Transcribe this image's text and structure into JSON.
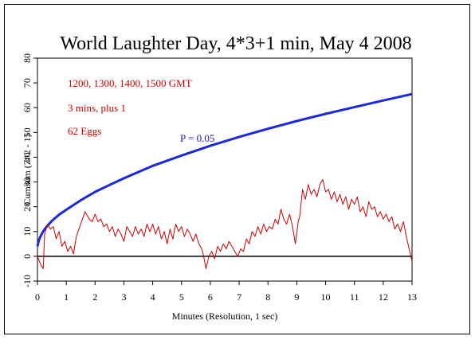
{
  "chart_data": {
    "type": "line",
    "title": "World Laughter Day, 4*3+1 min, May 4 2008",
    "xlabel": "Minutes (Resolution, 1 sec)",
    "ylabel": "Cumsum (Z^2 - 1)",
    "xlim": [
      0,
      13
    ],
    "ylim": [
      -10,
      80
    ],
    "xticks": [
      "0",
      "1",
      "2",
      "3",
      "4",
      "5",
      "6",
      "7",
      "8",
      "9",
      "10",
      "11",
      "12",
      "13"
    ],
    "yticks": [
      "-10",
      "0",
      "10",
      "20",
      "30",
      "40",
      "50",
      "60",
      "70",
      "80"
    ],
    "grid": false,
    "annotations": [
      {
        "text": "1200, 1300, 1400, 1500 GMT",
        "color": "#cc0000"
      },
      {
        "text": "3 mins, plus 1",
        "color": "#cc0000"
      },
      {
        "text": "62 Eggs",
        "color": "#cc0000"
      }
    ],
    "p_label": {
      "text": "P = 0.05",
      "color": "#1a1acc"
    },
    "series": [
      {
        "role": "p05-envelope",
        "color": "#1a2ad8",
        "x": [
          0,
          0.05,
          0.1,
          0.2,
          0.3,
          0.5,
          0.75,
          1,
          1.5,
          2,
          2.5,
          3,
          4,
          5,
          6,
          7,
          8,
          9,
          10,
          11,
          12,
          13
        ],
        "y": [
          4,
          6.5,
          7.9,
          10.1,
          11.7,
          14.3,
          16.8,
          18.8,
          22.6,
          26.0,
          28.8,
          31.5,
          36.5,
          40.7,
          44.6,
          48.2,
          51.5,
          54.6,
          57.5,
          60.2,
          62.9,
          65.5
        ]
      },
      {
        "role": "cumsum",
        "color": "#cc0000",
        "x": [
          0,
          0.1,
          0.2,
          0.25,
          0.35,
          0.45,
          0.55,
          0.65,
          0.75,
          0.85,
          0.95,
          1.05,
          1.15,
          1.25,
          1.35,
          1.5,
          1.65,
          1.8,
          1.9,
          2.0,
          2.1,
          2.2,
          2.3,
          2.4,
          2.5,
          2.6,
          2.7,
          2.8,
          2.9,
          3.0,
          3.1,
          3.2,
          3.3,
          3.4,
          3.5,
          3.6,
          3.7,
          3.8,
          3.9,
          4.0,
          4.1,
          4.2,
          4.3,
          4.4,
          4.5,
          4.6,
          4.7,
          4.8,
          4.9,
          5.0,
          5.1,
          5.2,
          5.3,
          5.4,
          5.5,
          5.6,
          5.7,
          5.75,
          5.85,
          5.95,
          6.05,
          6.15,
          6.25,
          6.35,
          6.45,
          6.55,
          6.65,
          6.75,
          6.85,
          6.95,
          7.05,
          7.15,
          7.25,
          7.35,
          7.45,
          7.55,
          7.65,
          7.75,
          7.85,
          7.95,
          8.05,
          8.15,
          8.25,
          8.35,
          8.45,
          8.55,
          8.65,
          8.75,
          8.85,
          8.95,
          9.05,
          9.1,
          9.2,
          9.3,
          9.4,
          9.5,
          9.6,
          9.7,
          9.8,
          9.9,
          10.0,
          10.1,
          10.2,
          10.3,
          10.4,
          10.5,
          10.6,
          10.7,
          10.8,
          10.9,
          11.0,
          11.1,
          11.2,
          11.3,
          11.4,
          11.5,
          11.6,
          11.7,
          11.8,
          11.9,
          12.0,
          12.1,
          12.2,
          12.3,
          12.4,
          12.5,
          12.6,
          12.7,
          12.8,
          12.9,
          13.0
        ],
        "y": [
          0,
          -3,
          -5,
          9,
          13,
          11,
          12,
          7,
          10,
          4,
          6,
          2,
          4,
          1,
          8,
          13,
          18,
          15,
          14,
          17,
          14,
          15,
          12,
          13,
          10,
          12,
          8,
          11,
          9,
          6,
          12,
          10,
          8,
          12,
          9,
          11,
          8,
          13,
          10,
          13,
          9,
          12,
          7,
          10,
          5,
          11,
          7,
          13,
          10,
          12,
          8,
          11,
          9,
          6,
          9,
          5,
          3,
          1,
          -5,
          0,
          2,
          -1,
          4,
          2,
          5,
          3,
          6,
          4,
          2,
          0,
          3,
          2,
          7,
          5,
          10,
          8,
          12,
          9,
          13,
          10,
          12,
          11,
          15,
          13,
          19,
          15,
          13,
          17,
          12,
          5,
          14,
          16,
          27,
          23,
          29,
          25,
          27,
          24,
          29,
          31,
          26,
          27,
          23,
          26,
          22,
          25,
          21,
          24,
          19,
          23,
          21,
          24,
          18,
          20,
          16,
          22,
          19,
          20,
          16,
          18,
          15,
          17,
          14,
          16,
          11,
          13,
          10,
          14,
          8,
          3,
          -2
        ]
      }
    ]
  }
}
